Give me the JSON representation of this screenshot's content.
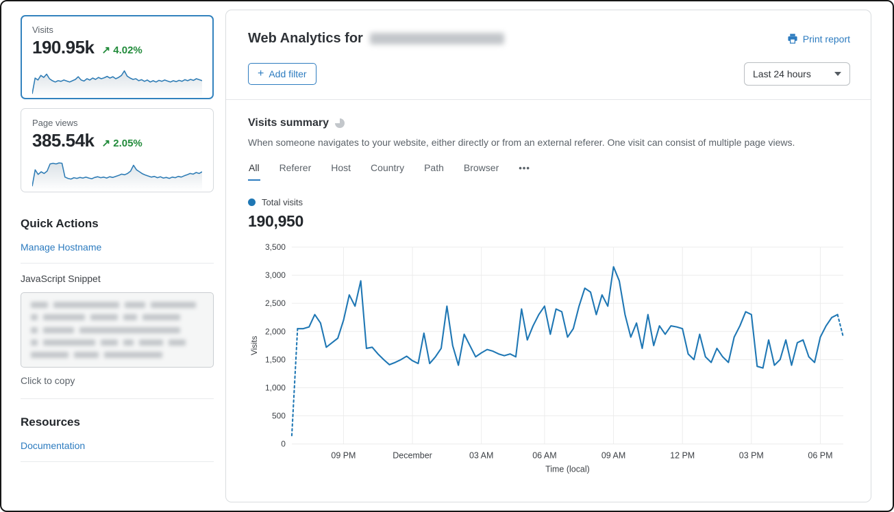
{
  "colors": {
    "link_blue": "#2c7bbf",
    "chart_blue": "#1f77b4",
    "positive_green": "#228b3b",
    "selected_card_border": "#3282be"
  },
  "sidebar": {
    "stats": [
      {
        "label": "Visits",
        "value": "190.95k",
        "arrow": "↗",
        "delta": "4.02%",
        "selected": true,
        "spark": [
          4,
          52,
          46,
          60,
          54,
          64,
          50,
          44,
          40,
          44,
          42,
          46,
          43,
          40,
          44,
          48,
          56,
          46,
          43,
          50,
          46,
          52,
          48,
          54,
          50,
          53,
          57,
          52,
          56,
          50,
          54,
          60,
          74,
          58,
          52,
          48,
          50,
          44,
          47,
          42,
          46,
          40,
          44,
          40,
          45,
          42,
          46,
          43,
          40,
          44,
          41,
          45,
          42,
          47,
          44,
          48,
          45,
          50,
          47,
          44
        ]
      },
      {
        "label": "Page views",
        "value": "385.54k",
        "arrow": "↗",
        "delta": "2.05%",
        "selected": false,
        "spark": [
          6,
          56,
          42,
          50,
          45,
          52,
          74,
          76,
          74,
          77,
          76,
          34,
          30,
          28,
          32,
          30,
          33,
          31,
          34,
          31,
          29,
          33,
          35,
          32,
          34,
          31,
          35,
          33,
          36,
          39,
          43,
          41,
          45,
          52,
          70,
          56,
          50,
          44,
          40,
          37,
          34,
          36,
          32,
          35,
          31,
          33,
          30,
          34,
          32,
          36,
          34,
          38,
          41,
          45,
          43,
          48,
          45,
          50
        ]
      }
    ],
    "quick_actions_title": "Quick Actions",
    "manage_hostname_label": "Manage Hostname",
    "js_snippet_label": "JavaScript Snippet",
    "click_to_copy_label": "Click to copy",
    "resources_title": "Resources",
    "documentation_label": "Documentation"
  },
  "header": {
    "title_prefix": "Web Analytics for",
    "print_report_label": "Print report"
  },
  "toolbar": {
    "add_filter_plus": "+",
    "add_filter_label": "Add filter",
    "time_range_value": "Last 24 hours"
  },
  "summary": {
    "title": "Visits summary",
    "description": "When someone navigates to your website, either directly or from an external referer. One visit can consist of multiple page views.",
    "tabs": [
      "All",
      "Referer",
      "Host",
      "Country",
      "Path",
      "Browser",
      "•••"
    ],
    "active_tab": "All",
    "legend_label": "Total visits",
    "total_value": "190,950"
  },
  "chart_data": {
    "type": "line",
    "title": "Visits summary",
    "series": [
      {
        "name": "Total visits",
        "values": [
          150,
          2050,
          2050,
          2080,
          2300,
          2150,
          1720,
          1800,
          1880,
          2200,
          2650,
          2450,
          2900,
          1700,
          1720,
          1600,
          1500,
          1410,
          1450,
          1500,
          1560,
          1480,
          1430,
          1970,
          1430,
          1550,
          1700,
          2450,
          1750,
          1400,
          1950,
          1750,
          1550,
          1620,
          1680,
          1650,
          1600,
          1570,
          1600,
          1550,
          2400,
          1850,
          2100,
          2300,
          2450,
          1950,
          2400,
          2350,
          1900,
          2050,
          2450,
          2770,
          2700,
          2300,
          2650,
          2450,
          3150,
          2900,
          2300,
          1900,
          2150,
          1700,
          2300,
          1750,
          2100,
          1950,
          2100,
          2080,
          2050,
          1600,
          1500,
          1950,
          1550,
          1450,
          1700,
          1550,
          1450,
          1900,
          2100,
          2350,
          2300,
          1380,
          1350,
          1850,
          1400,
          1500,
          1850,
          1400,
          1800,
          1850,
          1550,
          1450,
          1900,
          2100,
          2250,
          2300,
          1900
        ]
      }
    ],
    "dashed_segments": {
      "head_points": 2,
      "tail_points": 2
    },
    "ylim": [
      0,
      3500
    ],
    "ytick_step": 500,
    "ylabel": "Visits",
    "xlabel": "Time (local)",
    "x_ticks": [
      {
        "i": 9,
        "label": "09 PM"
      },
      {
        "i": 21,
        "label": "December"
      },
      {
        "i": 33,
        "label": "03 AM"
      },
      {
        "i": 44,
        "label": "06 AM"
      },
      {
        "i": 56,
        "label": "09 AM"
      },
      {
        "i": 68,
        "label": "12 PM"
      },
      {
        "i": 80,
        "label": "03 PM"
      },
      {
        "i": 92,
        "label": "06 PM"
      }
    ],
    "grid": true,
    "legend_position": "top-left",
    "line_color": "#1f77b4"
  }
}
